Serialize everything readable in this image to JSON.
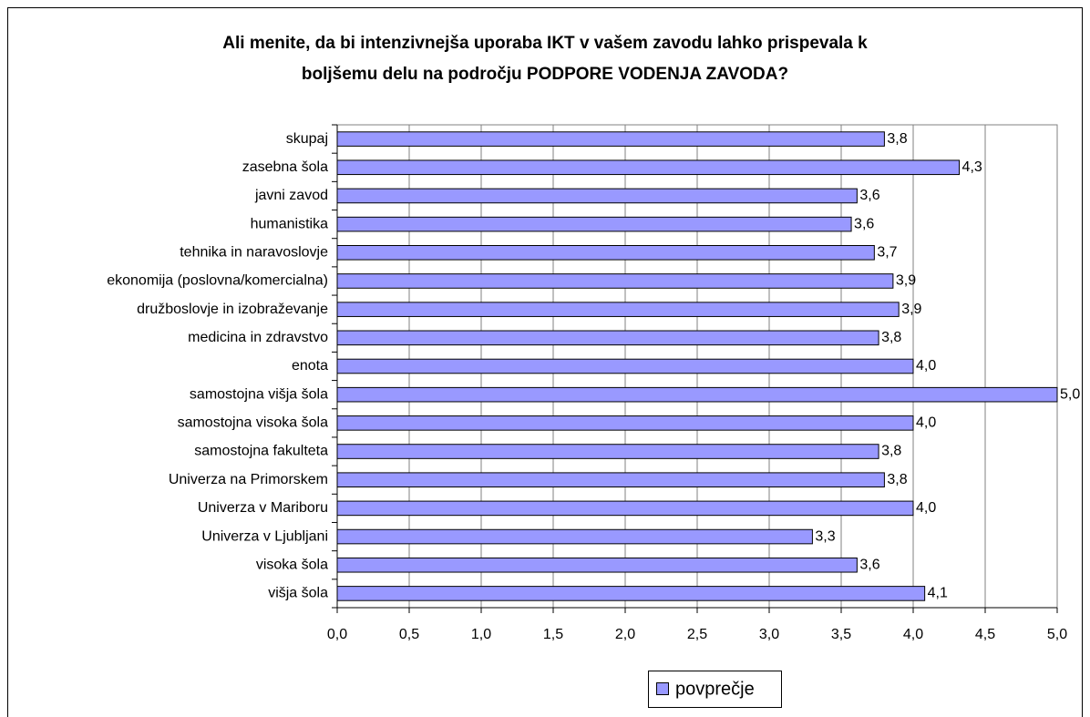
{
  "chart_data": {
    "type": "bar",
    "orientation": "horizontal",
    "title": [
      "Ali menite, da bi intenzivnejša uporaba IKT v vašem zavodu lahko prispevala k",
      "boljšemu delu na področju PODPORE VODENJA ZAVODA?"
    ],
    "categories": [
      "skupaj",
      "zasebna šola",
      "javni zavod",
      "humanistika",
      "tehnika in naravoslovje",
      "ekonomija (poslovna/komercialna)",
      "družboslovje in izobraževanje",
      "medicina in zdravstvo",
      "enota",
      "samostojna višja šola",
      "samostojna visoka šola",
      "samostojna fakulteta",
      "Univerza na Primorskem",
      "Univerza v Mariboru",
      "Univerza v Ljubljani",
      "visoka šola",
      "višja šola"
    ],
    "series": [
      {
        "name": "povprečje",
        "color": "#9999ff",
        "values": [
          3.8,
          4.32,
          3.61,
          3.57,
          3.73,
          3.86,
          3.9,
          3.76,
          4.0,
          5.0,
          4.0,
          3.76,
          3.8,
          4.0,
          3.3,
          3.61,
          4.08
        ],
        "value_labels": [
          "3,8",
          "4,3",
          "3,6",
          "3,6",
          "3,7",
          "3,9",
          "3,9",
          "3,8",
          "4,0",
          "5,0",
          "4,0",
          "3,8",
          "3,8",
          "4,0",
          "3,3",
          "3,6",
          "4,1"
        ]
      }
    ],
    "xlim": [
      0,
      5
    ],
    "xticks": [
      {
        "value": 0,
        "label": "0,0"
      },
      {
        "value": 0.5,
        "label": "0,5"
      },
      {
        "value": 1,
        "label": "1,0"
      },
      {
        "value": 1.5,
        "label": "1,5"
      },
      {
        "value": 2,
        "label": "2,0"
      },
      {
        "value": 2.5,
        "label": "2,5"
      },
      {
        "value": 3,
        "label": "3,0"
      },
      {
        "value": 3.5,
        "label": "3,5"
      },
      {
        "value": 4,
        "label": "4,0"
      },
      {
        "value": 4.5,
        "label": "4,5"
      },
      {
        "value": 5,
        "label": "5,0"
      }
    ],
    "grid": true,
    "legend": "bottom"
  }
}
